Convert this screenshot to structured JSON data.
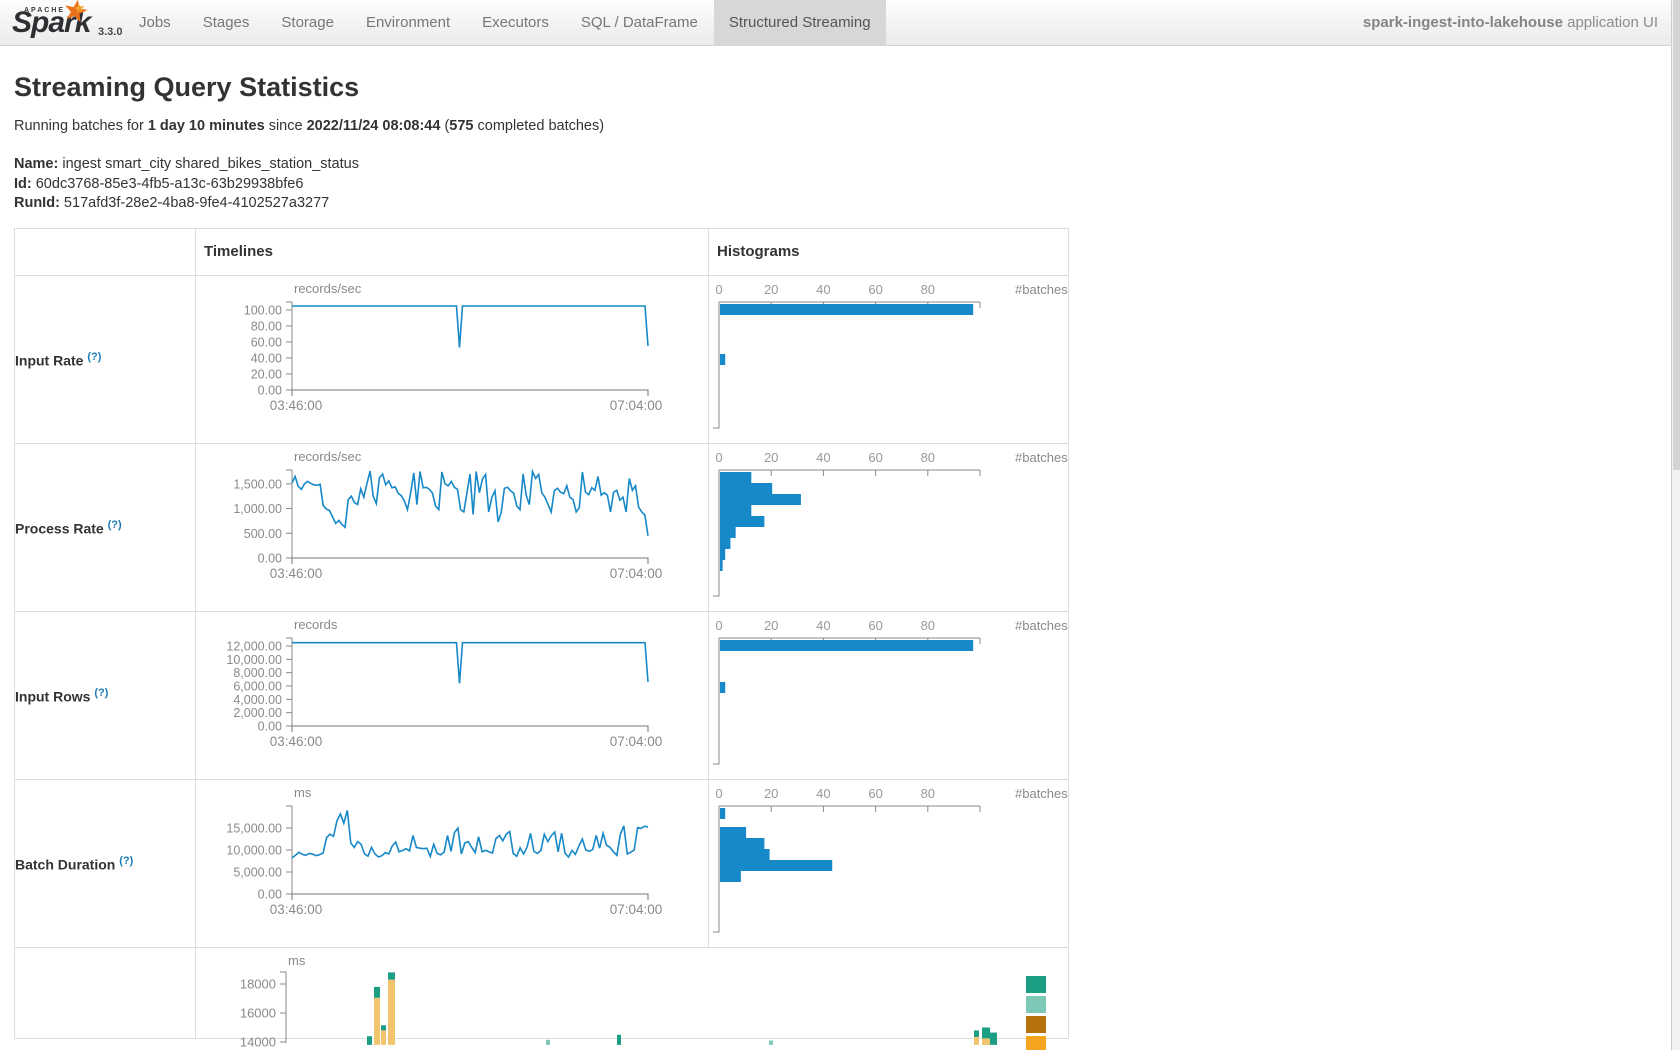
{
  "navbar": {
    "logo": {
      "apache": "APACHE",
      "name": "Spark",
      "version": "3.3.0",
      "star_icon": "★"
    },
    "tabs": [
      {
        "label": "Jobs",
        "active": false
      },
      {
        "label": "Stages",
        "active": false
      },
      {
        "label": "Storage",
        "active": false
      },
      {
        "label": "Environment",
        "active": false
      },
      {
        "label": "Executors",
        "active": false
      },
      {
        "label": "SQL / DataFrame",
        "active": false
      },
      {
        "label": "Structured Streaming",
        "active": true
      }
    ],
    "app_name": "spark-ingest-into-lakehouse",
    "app_suffix": " application UI"
  },
  "page": {
    "title": "Streaming Query Statistics",
    "running_line": {
      "prefix": "Running batches for ",
      "duration": "1 day 10 minutes",
      "middle": " since ",
      "start_time": "2022/11/24 08:08:44",
      "open_paren": " (",
      "completed_count": "575",
      "suffix": " completed batches)"
    },
    "query": {
      "name_label": "Name:",
      "name_value": " ingest smart_city shared_bikes_station_status",
      "id_label": "Id:",
      "id_value": " 60dc3768-85e3-4fb5-a13c-63b29938bfe6",
      "runid_label": "RunId:",
      "runid_value": " 517afd3f-28e2-4ba8-9fe4-4102527a3277"
    }
  },
  "table": {
    "header": {
      "timelines": "Timelines",
      "histograms": "Histograms"
    },
    "rows": [
      {
        "label": "Input Rate",
        "help": "(?)"
      },
      {
        "label": "Process Rate",
        "help": "(?)"
      },
      {
        "label": "Input Rows",
        "help": "(?)"
      },
      {
        "label": "Batch Duration",
        "help": "(?)"
      }
    ]
  },
  "colors": {
    "series_blue": "#1788c8",
    "axis_gray": "#888888",
    "tick_text": "#8a8a8a",
    "op_tan": "#f3c46e",
    "op_teal": "#1b9e84",
    "op_light_teal": "#7dc8b7",
    "op_dark_orange": "#b5720e",
    "op_orange": "#f5a41f"
  },
  "chart_data": [
    {
      "id": "input_rate_timeline",
      "type": "line",
      "title": "records/sec",
      "x_labels": [
        "03:46:00",
        "07:04:00"
      ],
      "y_top": 110,
      "y_ticks": [
        {
          "v": 100,
          "label": "100.00"
        },
        {
          "v": 80,
          "label": "80.00"
        },
        {
          "v": 60,
          "label": "60.00"
        },
        {
          "v": 40,
          "label": "40.00"
        },
        {
          "v": 20,
          "label": "20.00"
        },
        {
          "v": 0,
          "label": "0.00"
        }
      ],
      "series": {
        "base": 105,
        "n": 120,
        "spikes": [
          [
            56,
            53
          ],
          [
            119,
            55
          ]
        ]
      }
    },
    {
      "id": "input_rate_histogram",
      "type": "histogram",
      "x_ticks": [
        0,
        20,
        40,
        60,
        80
      ],
      "unit_label": "#batches",
      "bars": [
        {
          "value": 97,
          "offset": 0
        },
        {
          "value": 2,
          "offset": 50
        }
      ]
    },
    {
      "id": "process_rate_timeline",
      "type": "line",
      "title": "records/sec",
      "x_labels": [
        "03:46:00",
        "07:04:00"
      ],
      "y_top": 1780,
      "y_ticks": [
        {
          "v": 1500,
          "label": "1,500.00"
        },
        {
          "v": 1000,
          "label": "1,000.00"
        },
        {
          "v": 500,
          "label": "500.00"
        },
        {
          "v": 0,
          "label": "0.00"
        }
      ],
      "series": {
        "values": [
          1520,
          1650,
          1450,
          1390,
          1500,
          1550,
          1510,
          1480,
          1470,
          1490,
          1060,
          990,
          960,
          830,
          700,
          760,
          680,
          620,
          1180,
          1250,
          1120,
          1080,
          1400,
          1230,
          1500,
          1760,
          1250,
          1100,
          1620,
          1700,
          1480,
          1560,
          1420,
          1440,
          1310,
          1260,
          1150,
          980,
          1320,
          1720,
          1080,
          1750,
          1420,
          1430,
          1390,
          1310,
          1050,
          980,
          1740,
          1500,
          1460,
          1550,
          1430,
          1390,
          980,
          930,
          1310,
          1700,
          880,
          1750,
          1320,
          1600,
          1690,
          930,
          1230,
          1360,
          730,
          920,
          1410,
          1430,
          1360,
          1310,
          1050,
          980,
          1700,
          1270,
          1080,
          1750,
          1610,
          1690,
          1320,
          1230,
          1080,
          930,
          1360,
          1410,
          1330,
          1300,
          1460,
          1230,
          1180,
          930,
          1020,
          1740,
          1330,
          1280,
          1420,
          1370,
          1650,
          1270,
          1320,
          1270,
          930,
          1330,
          1370,
          1170,
          1230,
          930,
          1610,
          1370,
          1460,
          1030,
          930,
          870,
          450
        ]
      }
    },
    {
      "id": "process_rate_histogram",
      "type": "histogram",
      "x_ticks": [
        0,
        20,
        40,
        60,
        80
      ],
      "unit_label": "#batches",
      "bars": [
        {
          "value": 12,
          "offset": 0
        },
        {
          "value": 20,
          "offset": 11
        },
        {
          "value": 31,
          "offset": 22
        },
        {
          "value": 12,
          "offset": 33
        },
        {
          "value": 17,
          "offset": 44
        },
        {
          "value": 6,
          "offset": 55
        },
        {
          "value": 4,
          "offset": 66
        },
        {
          "value": 2,
          "offset": 77
        },
        {
          "value": 1,
          "offset": 88
        }
      ]
    },
    {
      "id": "input_rows_timeline",
      "type": "line",
      "title": "records",
      "x_labels": [
        "03:46:00",
        "07:04:00"
      ],
      "y_top": 13200,
      "y_ticks": [
        {
          "v": 12000,
          "label": "12,000.00"
        },
        {
          "v": 10000,
          "label": "10,000.00"
        },
        {
          "v": 8000,
          "label": "8,000.00"
        },
        {
          "v": 6000,
          "label": "6,000.00"
        },
        {
          "v": 4000,
          "label": "4,000.00"
        },
        {
          "v": 2000,
          "label": "2,000.00"
        },
        {
          "v": 0,
          "label": "0.00"
        }
      ],
      "series": {
        "base": 12500,
        "n": 120,
        "spikes": [
          [
            56,
            6400
          ],
          [
            119,
            6600
          ]
        ]
      }
    },
    {
      "id": "input_rows_histogram",
      "type": "histogram",
      "x_ticks": [
        0,
        20,
        40,
        60,
        80
      ],
      "unit_label": "#batches",
      "bars": [
        {
          "value": 97,
          "offset": 0
        },
        {
          "value": 2,
          "offset": 42
        }
      ]
    },
    {
      "id": "batch_duration_timeline",
      "type": "line",
      "title": "ms",
      "x_labels": [
        "03:46:00",
        "07:04:00"
      ],
      "y_top": 20000,
      "y_ticks": [
        {
          "v": 15000,
          "label": "15,000.00"
        },
        {
          "v": 10000,
          "label": "10,000.00"
        },
        {
          "v": 5000,
          "label": "5,000.00"
        },
        {
          "v": 0,
          "label": "0.00"
        }
      ],
      "series": {
        "values": [
          8200,
          8800,
          9500,
          9000,
          8800,
          9200,
          9050,
          8700,
          8950,
          9300,
          12800,
          13600,
          13100,
          16600,
          18200,
          16100,
          19000,
          11600,
          10600,
          11900,
          11300,
          9100,
          8600,
          10600,
          9100,
          8400,
          8700,
          9400,
          9100,
          10900,
          11800,
          9600,
          9900,
          10300,
          9800,
          13300,
          10600,
          10400,
          10300,
          10400,
          8500,
          11300,
          9200,
          8900,
          9500,
          13300,
          9700,
          13900,
          15000,
          9100,
          11600,
          11900,
          10600,
          9400,
          13000,
          9600,
          9900,
          9600,
          9300,
          12600,
          13300,
          12100,
          13600,
          14200,
          9200,
          8600,
          10500,
          9100,
          10600,
          13800,
          9700,
          9200,
          9900,
          13600,
          11900,
          13200,
          14100,
          9600,
          13800,
          9300,
          8400,
          9900,
          9000,
          10900,
          12500,
          10000,
          9700,
          10100,
          13300,
          10400,
          13800,
          11100,
          10600,
          9600,
          8800,
          13500,
          15500,
          9100,
          9500,
          10000,
          15100,
          14900,
          15400,
          15200
        ]
      }
    },
    {
      "id": "batch_duration_histogram",
      "type": "histogram",
      "x_ticks": [
        0,
        20,
        40,
        60,
        80
      ],
      "unit_label": "#batches",
      "bars": [
        {
          "value": 2,
          "offset": 0
        },
        {
          "value": 10,
          "offset": 19
        },
        {
          "value": 17,
          "offset": 30
        },
        {
          "value": 19,
          "offset": 41
        },
        {
          "value": 43,
          "offset": 52
        },
        {
          "value": 8,
          "offset": 63
        }
      ]
    },
    {
      "id": "operation_duration_timeline",
      "type": "stacked-bar",
      "title": "ms",
      "y_ticks": [
        {
          "v": 18000,
          "label": "18000"
        },
        {
          "v": 16000,
          "label": "16000"
        },
        {
          "v": 14000,
          "label": "14000"
        }
      ],
      "bars": [
        {
          "x": 171,
          "w": 5,
          "segs": [
            [
              "teal",
              13800,
              14400
            ]
          ]
        },
        {
          "x": 178,
          "w": 6,
          "segs": [
            [
              "tan",
              13800,
              17050
            ],
            [
              "teal",
              17050,
              17800
            ]
          ]
        },
        {
          "x": 185,
          "w": 5,
          "segs": [
            [
              "tan",
              13800,
              14800
            ],
            [
              "teal",
              14800,
              15150
            ]
          ]
        },
        {
          "x": 192,
          "w": 7,
          "segs": [
            [
              "tan",
              13800,
              18300
            ],
            [
              "teal",
              18300,
              18800
            ]
          ]
        },
        {
          "x": 350,
          "w": 4,
          "segs": [
            [
              "lteal",
              13800,
              14150
            ]
          ]
        },
        {
          "x": 421,
          "w": 4,
          "segs": [
            [
              "teal",
              13800,
              14500
            ]
          ]
        },
        {
          "x": 573,
          "w": 4,
          "segs": [
            [
              "lteal",
              13800,
              14100
            ]
          ]
        },
        {
          "x": 778,
          "w": 5,
          "segs": [
            [
              "tan",
              13800,
              14350
            ],
            [
              "teal",
              14350,
              14800
            ]
          ]
        },
        {
          "x": 786,
          "w": 8,
          "segs": [
            [
              "tan",
              13800,
              14250
            ],
            [
              "teal",
              14250,
              15000
            ]
          ]
        },
        {
          "x": 794,
          "w": 7,
          "segs": [
            [
              "teal",
              13800,
              14650
            ]
          ]
        }
      ],
      "legend_colors": [
        "#1b9e84",
        "#7dc8b7",
        "#b5720e",
        "#f5a41f"
      ]
    }
  ]
}
